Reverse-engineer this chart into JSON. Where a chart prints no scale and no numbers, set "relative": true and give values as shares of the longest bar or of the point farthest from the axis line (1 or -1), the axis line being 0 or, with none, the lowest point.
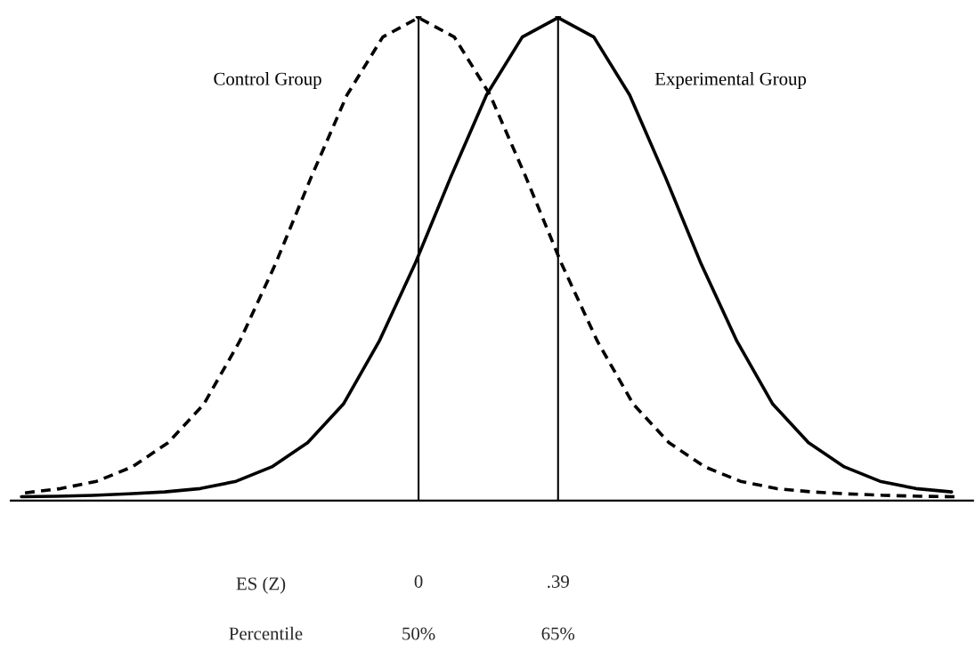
{
  "chart_data": {
    "type": "line",
    "relative": true,
    "xlabel": "ES (Z)",
    "xlim": [
      -1.14,
      1.55
    ],
    "xticks": [
      {
        "value": 0,
        "label": "0"
      },
      {
        "value": 0.39,
        "label": ".39"
      }
    ],
    "legend": false,
    "ref_lines": [
      {
        "axis": "x",
        "value": 0,
        "color": "#000000",
        "line_style": "solid"
      },
      {
        "axis": "x",
        "value": 0.39,
        "color": "#000000",
        "line_style": "solid"
      }
    ],
    "annotations": [
      "Percentile",
      "50%",
      "65%"
    ],
    "series": [
      {
        "name": "Control Group",
        "color": "#000000",
        "line_style": "dashed",
        "x": [
          -1.1,
          -1.0,
          -0.9,
          -0.8,
          -0.7,
          -0.6,
          -0.5,
          -0.4,
          -0.3,
          -0.2,
          -0.1,
          0,
          0.1,
          0.2,
          0.3,
          0.4,
          0.5,
          0.6,
          0.7,
          0.8,
          0.9,
          1.0,
          1.1,
          1.2,
          1.3,
          1.4,
          1.5
        ],
        "values": [
          0.016,
          0.025,
          0.04,
          0.07,
          0.12,
          0.2,
          0.33,
          0.49,
          0.67,
          0.84,
          0.96,
          1,
          0.96,
          0.84,
          0.67,
          0.49,
          0.33,
          0.2,
          0.12,
          0.07,
          0.04,
          0.025,
          0.018,
          0.014,
          0.011,
          0.009,
          0.008
        ]
      },
      {
        "name": "Experimental Group",
        "color": "#000000",
        "line_style": "solid",
        "x": [
          -1.11,
          -1.01,
          -0.91,
          -0.81,
          -0.71,
          -0.61,
          -0.51,
          -0.41,
          -0.31,
          -0.21,
          -0.11,
          -0.01,
          0.09,
          0.19,
          0.29,
          0.39,
          0.49,
          0.59,
          0.69,
          0.79,
          0.89,
          0.99,
          1.09,
          1.19,
          1.29,
          1.39,
          1.49
        ],
        "values": [
          0.008,
          0.009,
          0.011,
          0.014,
          0.018,
          0.025,
          0.04,
          0.07,
          0.12,
          0.2,
          0.33,
          0.49,
          0.67,
          0.84,
          0.96,
          1,
          0.96,
          0.84,
          0.67,
          0.49,
          0.33,
          0.2,
          0.12,
          0.07,
          0.04,
          0.025,
          0.018
        ]
      }
    ]
  }
}
